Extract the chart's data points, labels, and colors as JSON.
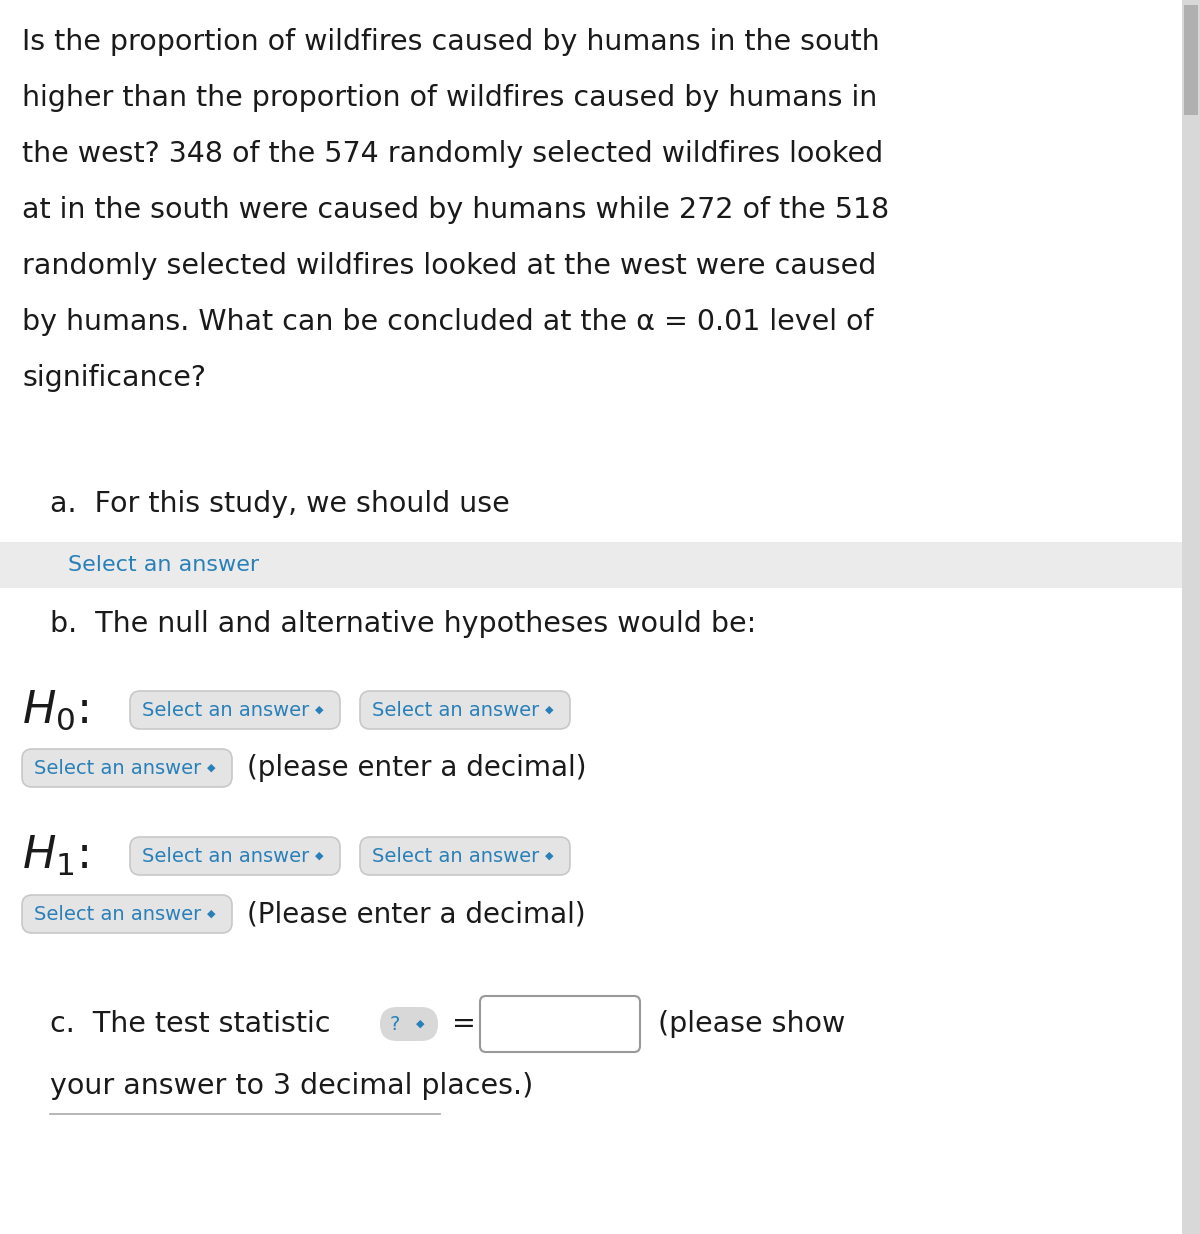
{
  "bg_color": "#ffffff",
  "text_color": "#1a1a1a",
  "blue_color": "#2980b9",
  "scrollbar_track": "#d8d8d8",
  "scrollbar_thumb": "#b0b0b0",
  "dropdown_bg": "#e4e4e4",
  "dropdown_border": "#c8c8c8",
  "gray_bar_bg": "#ebebeb",
  "input_box_border": "#999999",
  "qmark_bg": "#d8d8d8",
  "lines": [
    "Is the proportion of wildfires caused by humans in the south",
    "higher than the proportion of wildfires caused by humans in",
    "the west? 348 of the 574 randomly selected wildfires looked",
    "at in the south were caused by humans while 272 of the 518",
    "randomly selected wildfires looked at the west were caused",
    "by humans. What can be concluded at the α = 0.01 level of",
    "significance?"
  ],
  "item_a": "a.  For this study, we should use",
  "select_answer": "Select an answer",
  "chevron": "◆",
  "item_b": "b.  The null and alternative hypotheses would be:",
  "please_decimal_lo": "(please enter a decimal)",
  "please_decimal_hi": "(Please enter a decimal)",
  "item_c": "c.  The test statistic",
  "eq": "=",
  "please_show": "(please show",
  "decimal_places": "your answer to 3 decimal places.)"
}
